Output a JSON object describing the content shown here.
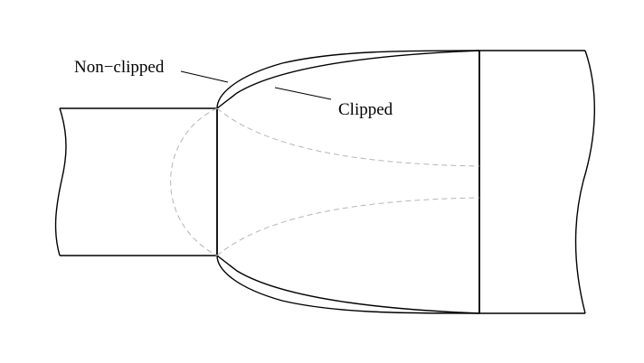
{
  "labels": {
    "non_clipped": "Non−clipped",
    "clipped": "Clipped"
  },
  "colors": {
    "stroke": "#000000",
    "hidden": "#b5b5b5",
    "background": "#ffffff"
  }
}
